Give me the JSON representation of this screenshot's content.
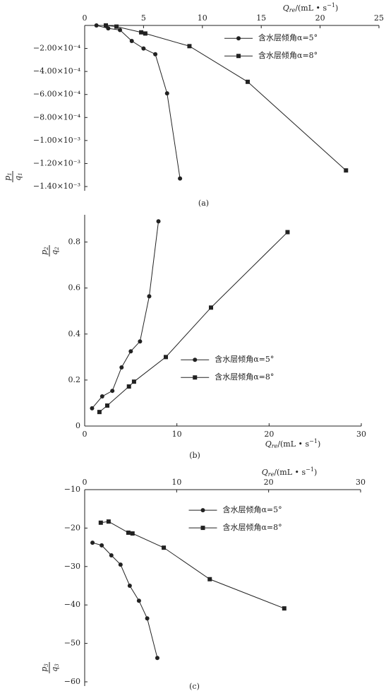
{
  "chart_data": [
    {
      "type": "line",
      "caption": "(a)",
      "x_axis_position": "top",
      "legend": "upper right",
      "x_label": {
        "symbol": "Q",
        "subscript": "re",
        "unit": "/(mL • s",
        "exponent": "−1",
        "close": ")"
      },
      "y_label": {
        "numerator": "p",
        "numerator_sub": "1",
        "denominator": "q",
        "denominator_sub": "1"
      },
      "xlim": [
        0,
        25
      ],
      "xticks": [
        0,
        5,
        10,
        15,
        20,
        25
      ],
      "ylim": [
        -0.0014,
        0
      ],
      "yticks": [
        {
          "value": -0.0002,
          "label": "−2.00×10⁻⁴"
        },
        {
          "value": -0.0004,
          "label": "−4.00×10⁻⁴"
        },
        {
          "value": -0.0006,
          "label": "−6.00×10⁻⁴"
        },
        {
          "value": -0.0008,
          "label": "−8.00×10⁻⁴"
        },
        {
          "value": -0.001,
          "label": "−1.00×10⁻³"
        },
        {
          "value": -0.0012,
          "label": "−1.20×10⁻³"
        },
        {
          "value": -0.0014,
          "label": "−1.40×10⁻³"
        }
      ],
      "series": [
        {
          "name": "含水层倾角α=5°",
          "color": "#222222",
          "marker": "circle",
          "x": [
            1.0,
            2.0,
            3.0,
            4.0,
            5.0,
            6.0,
            7.0,
            8.1
          ],
          "values": [
            0,
            -2.5e-05,
            -4e-05,
            -0.000135,
            -0.0002,
            -0.00025,
            -0.00059,
            -0.00133
          ]
        },
        {
          "name": "含水层倾角α=8°",
          "color": "#222222",
          "marker": "square",
          "x": [
            1.8,
            2.7,
            4.8,
            5.15,
            8.9,
            13.85,
            22.2
          ],
          "values": [
            0,
            -1e-05,
            -6e-05,
            -7e-05,
            -0.00018,
            -0.00049,
            -0.00126
          ]
        }
      ]
    },
    {
      "type": "line",
      "caption": "(b)",
      "x_axis_position": "bottom",
      "legend": "center right",
      "x_label": {
        "symbol": "Q",
        "subscript": "re",
        "unit": "/(mL • s",
        "exponent": "−1",
        "close": ")"
      },
      "y_label": {
        "numerator": "p",
        "numerator_sub": "2",
        "denominator": "q",
        "denominator_sub": "2"
      },
      "xlim": [
        0,
        30
      ],
      "xticks": [
        0,
        10,
        20,
        30
      ],
      "ylim": [
        0,
        0.9
      ],
      "yticks": [
        0,
        0.2,
        0.4,
        0.6,
        0.8
      ],
      "series": [
        {
          "name": "含水层倾角α=5°",
          "color": "#222222",
          "marker": "circle",
          "x": [
            0.8,
            1.9,
            3.0,
            4.0,
            5.0,
            6.0,
            7.0,
            8.0
          ],
          "values": [
            0.077,
            0.129,
            0.153,
            0.255,
            0.325,
            0.368,
            0.564,
            0.89
          ]
        },
        {
          "name": "含水层倾角α=8°",
          "color": "#222222",
          "marker": "square",
          "x": [
            1.6,
            2.45,
            4.8,
            5.35,
            8.8,
            13.7,
            22.0
          ],
          "values": [
            0.061,
            0.089,
            0.172,
            0.193,
            0.3,
            0.515,
            0.843
          ]
        }
      ]
    },
    {
      "type": "line",
      "caption": "(c)",
      "x_axis_position": "top",
      "legend": "upper center",
      "x_label": {
        "symbol": "Q",
        "subscript": "re",
        "unit": "/(mL • s",
        "exponent": "−1",
        "close": ")"
      },
      "y_label": {
        "numerator": "p",
        "numerator_sub": "3",
        "denominator": "q",
        "denominator_sub": "3"
      },
      "xlim": [
        0,
        30
      ],
      "xticks": [
        0,
        10,
        20,
        30
      ],
      "ylim": [
        -60,
        -10
      ],
      "yticks": [
        {
          "value": -10,
          "label": "−10"
        },
        {
          "value": -20,
          "label": "−20"
        },
        {
          "value": -30,
          "label": "−30"
        },
        {
          "value": -40,
          "label": "−40"
        },
        {
          "value": -50,
          "label": "−50"
        },
        {
          "value": -60,
          "label": "−60"
        }
      ],
      "series": [
        {
          "name": "含水层倾角α=5°",
          "color": "#222222",
          "marker": "circle",
          "x": [
            0.85,
            1.85,
            2.9,
            3.9,
            4.9,
            5.9,
            6.8,
            7.9
          ],
          "values": [
            -23.8,
            -24.5,
            -27.1,
            -29.5,
            -35.0,
            -38.9,
            -43.5,
            -53.8
          ]
        },
        {
          "name": "含水层倾角α=8°",
          "color": "#222222",
          "marker": "square",
          "x": [
            1.75,
            2.6,
            4.75,
            5.2,
            8.6,
            13.6,
            21.7
          ],
          "values": [
            -18.6,
            -18.3,
            -21.2,
            -21.4,
            -25.1,
            -33.3,
            -40.9
          ]
        }
      ]
    }
  ]
}
